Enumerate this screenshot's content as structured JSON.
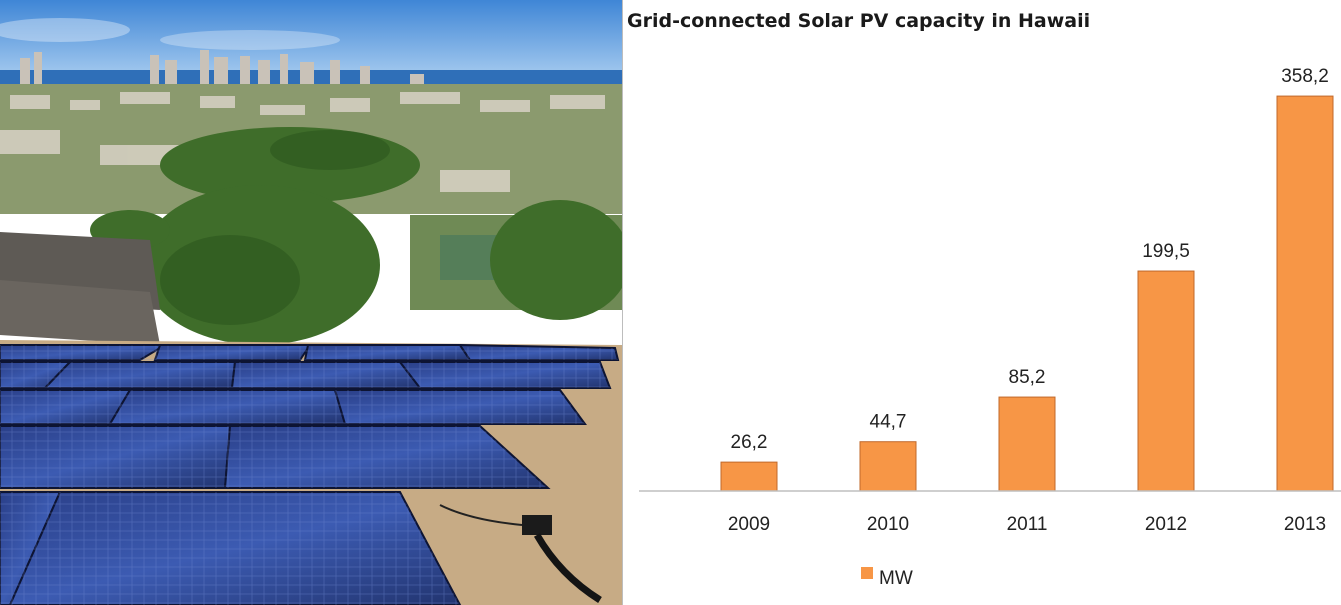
{
  "chart_data": {
    "type": "bar",
    "title": "Grid-connected Solar PV capacity in Hawaii",
    "categories": [
      "2009",
      "2010",
      "2011",
      "2012",
      "2013"
    ],
    "series": [
      {
        "name": "MW",
        "values": [
          26.2,
          44.7,
          85.2,
          199.5,
          358.2
        ],
        "value_labels": [
          "26,2",
          "44,7",
          "85,2",
          "199,5",
          "358,2"
        ],
        "color": "#f79646",
        "edge_color": "#c0682a"
      }
    ],
    "xlabel": "",
    "ylabel": "",
    "ylim": [
      0,
      400
    ],
    "grid": false,
    "legend": "bottom-left"
  }
}
